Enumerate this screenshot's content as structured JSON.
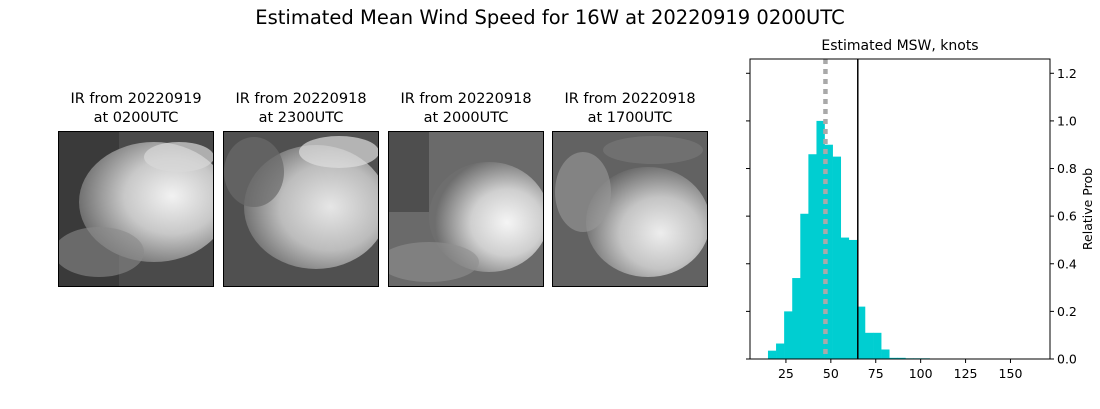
{
  "figure": {
    "title": "Estimated Mean Wind Speed for 16W at 20220919 0200UTC"
  },
  "panels": [
    {
      "title_line1": "IR from 20220919",
      "title_line2": "at 0200UTC"
    },
    {
      "title_line1": "IR from 20220918",
      "title_line2": "at 2300UTC"
    },
    {
      "title_line1": "IR from 20220918",
      "title_line2": "at 2000UTC"
    },
    {
      "title_line1": "IR from 20220918",
      "title_line2": "at 1700UTC"
    }
  ],
  "chart_data": {
    "type": "bar",
    "title": "Estimated MSW, knots",
    "xlabel": "",
    "ylabel": "Relative Prob",
    "xlim": [
      5,
      172
    ],
    "ylim": [
      0,
      1.26
    ],
    "bin_width": 4.5,
    "bins": [
      {
        "x0": 15.0,
        "value": 0.035
      },
      {
        "x0": 19.5,
        "value": 0.065
      },
      {
        "x0": 24.0,
        "value": 0.2
      },
      {
        "x0": 28.5,
        "value": 0.34
      },
      {
        "x0": 33.0,
        "value": 0.61
      },
      {
        "x0": 37.5,
        "value": 0.86
      },
      {
        "x0": 42.0,
        "value": 1.0
      },
      {
        "x0": 46.5,
        "value": 0.9
      },
      {
        "x0": 51.0,
        "value": 0.85
      },
      {
        "x0": 55.5,
        "value": 0.51
      },
      {
        "x0": 60.0,
        "value": 0.5
      },
      {
        "x0": 64.5,
        "value": 0.22
      },
      {
        "x0": 69.0,
        "value": 0.11
      },
      {
        "x0": 73.5,
        "value": 0.11
      },
      {
        "x0": 78.0,
        "value": 0.04
      },
      {
        "x0": 82.5,
        "value": 0.005
      },
      {
        "x0": 87.0,
        "value": 0.005
      },
      {
        "x0": 91.5,
        "value": 0.003
      },
      {
        "x0": 96.0,
        "value": 0.003
      },
      {
        "x0": 100.5,
        "value": 0.003
      },
      {
        "x0": 105.0,
        "value": 0.002
      },
      {
        "x0": 109.5,
        "value": 0.002
      },
      {
        "x0": 114.0,
        "value": 0.002
      },
      {
        "x0": 118.5,
        "value": 0.002
      },
      {
        "x0": 123.0,
        "value": 0.002
      },
      {
        "x0": 127.5,
        "value": 0.002
      },
      {
        "x0": 132.0,
        "value": 0.002
      },
      {
        "x0": 136.5,
        "value": 0.002
      },
      {
        "x0": 141.0,
        "value": 0.002
      },
      {
        "x0": 145.5,
        "value": 0.002
      },
      {
        "x0": 150.0,
        "value": 0.002
      },
      {
        "x0": 154.5,
        "value": 0.002
      },
      {
        "x0": 159.0,
        "value": 0.002
      },
      {
        "x0": 163.5,
        "value": 0.002
      }
    ],
    "x_ticks": [
      25,
      50,
      75,
      100,
      125,
      150
    ],
    "y_ticks": [
      0.0,
      0.2,
      0.4,
      0.6,
      0.8,
      1.0,
      1.2
    ],
    "y_tick_labels": [
      "0.0",
      "0.2",
      "0.4",
      "0.6",
      "0.8",
      "1.0",
      "1.2"
    ],
    "mean_line_x": 47,
    "solid_line_x": 65,
    "bar_color": "#00ced1",
    "mean_line_color": "#a9a9a9",
    "solid_line_color": "#000000",
    "y_axis_side": "right"
  }
}
